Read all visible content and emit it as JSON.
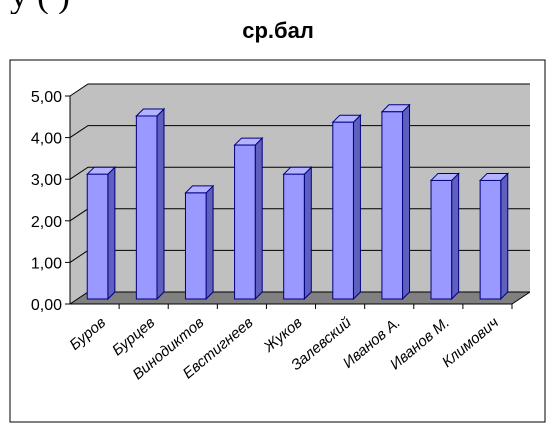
{
  "heading_fragment": "у   (         )",
  "chart_data": {
    "type": "bar",
    "title": "ср.бал",
    "xlabel": "",
    "ylabel": "",
    "ylim": [
      0,
      5
    ],
    "ytick_labels": [
      "0,00",
      "1,00",
      "2,00",
      "3,00",
      "4,00",
      "5,00"
    ],
    "categories": [
      "Буров",
      "Бурцев",
      "Винодиктов",
      "Евстигнеев",
      "Жуков",
      "Залевский",
      "Иванов А.",
      "Иванов М.",
      "Климович"
    ],
    "values": [
      3.0,
      4.4,
      2.55,
      3.7,
      3.0,
      4.25,
      4.5,
      2.85,
      2.85
    ],
    "grid": true,
    "legend": "none",
    "style": "3d-column",
    "colors": {
      "plot_background": "#c0c0c0",
      "bar_front": "#9999ff",
      "bar_top": "#b3b3ff",
      "bar_side": "#5f5fbd",
      "bar_edge": "#000080",
      "floor": "#808080",
      "gridline": "#000000",
      "chart_frame": "#000000"
    }
  }
}
